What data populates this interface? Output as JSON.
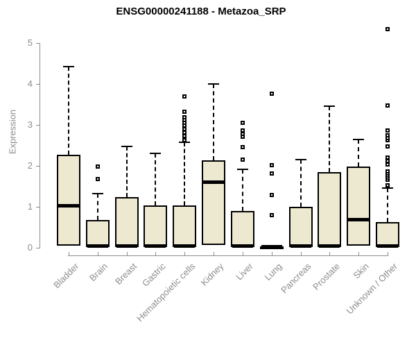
{
  "chart_data": {
    "type": "boxplot",
    "title": "ENSG00000241188 - Metazoa_SRP",
    "ylabel": "Expression",
    "xlabel": "",
    "ylim": [
      0,
      5.5
    ],
    "yticks": [
      0,
      1,
      2,
      3,
      4,
      5
    ],
    "grid": false,
    "legend": "none",
    "categories": [
      "Bladder",
      "Brain",
      "Breast",
      "Gastric",
      "Hematopoietic cells",
      "Kidney",
      "Liver",
      "Lung",
      "Pancreas",
      "Prostate",
      "Skin",
      "Unknown / Other"
    ],
    "boxes": [
      {
        "name": "Bladder",
        "q1": 0.05,
        "median": 1.02,
        "q3": 2.27,
        "whisker_high": 4.42,
        "outliers": []
      },
      {
        "name": "Brain",
        "q1": 0.02,
        "median": 0.05,
        "q3": 0.68,
        "whisker_high": 1.32,
        "outliers": [
          1.68,
          1.99
        ]
      },
      {
        "name": "Breast",
        "q1": 0.02,
        "median": 0.05,
        "q3": 1.24,
        "whisker_high": 2.48,
        "outliers": []
      },
      {
        "name": "Gastric",
        "q1": 0.02,
        "median": 0.05,
        "q3": 1.03,
        "whisker_high": 2.31,
        "outliers": []
      },
      {
        "name": "Hematopoietic cells",
        "q1": 0.02,
        "median": 0.05,
        "q3": 1.03,
        "whisker_high": 2.57,
        "outliers": [
          2.62,
          2.73,
          2.81,
          2.89,
          2.98,
          3.05,
          3.12,
          3.19,
          3.33,
          3.7
        ]
      },
      {
        "name": "Kidney",
        "q1": 0.07,
        "median": 1.6,
        "q3": 2.13,
        "whisker_high": 4.0,
        "outliers": []
      },
      {
        "name": "Liver",
        "q1": 0.02,
        "median": 0.05,
        "q3": 0.89,
        "whisker_high": 1.92,
        "outliers": [
          2.16,
          2.46,
          2.71,
          2.78,
          2.86,
          3.05
        ]
      },
      {
        "name": "Lung",
        "q1": 0.0,
        "median": 0.02,
        "q3": 0.04,
        "whisker_high": 0.04,
        "outliers": [
          0.8,
          1.28,
          1.81,
          2.02,
          3.77
        ]
      },
      {
        "name": "Pancreas",
        "q1": 0.02,
        "median": 0.05,
        "q3": 1.0,
        "whisker_high": 2.16,
        "outliers": []
      },
      {
        "name": "Prostate",
        "q1": 0.02,
        "median": 0.05,
        "q3": 1.85,
        "whisker_high": 3.45,
        "outliers": []
      },
      {
        "name": "Skin",
        "q1": 0.05,
        "median": 0.68,
        "q3": 1.99,
        "whisker_high": 2.64,
        "outliers": []
      },
      {
        "name": "Unknown / Other",
        "q1": 0.02,
        "median": 0.05,
        "q3": 0.63,
        "whisker_high": 1.45,
        "outliers": [
          1.52,
          1.66,
          1.72,
          1.77,
          1.82,
          1.87,
          2.04,
          2.12,
          2.2,
          2.47,
          2.62,
          2.68,
          2.74,
          2.86,
          3.48,
          5.34
        ]
      }
    ],
    "colors": {
      "box_fill": "#ede8d0",
      "box_border": "#000000",
      "median": "#000000",
      "whisker": "#000000",
      "axis": "#8c8c8c",
      "tick_text": "#8c8c8c",
      "title_text": "#000000",
      "background": "#ffffff"
    }
  }
}
